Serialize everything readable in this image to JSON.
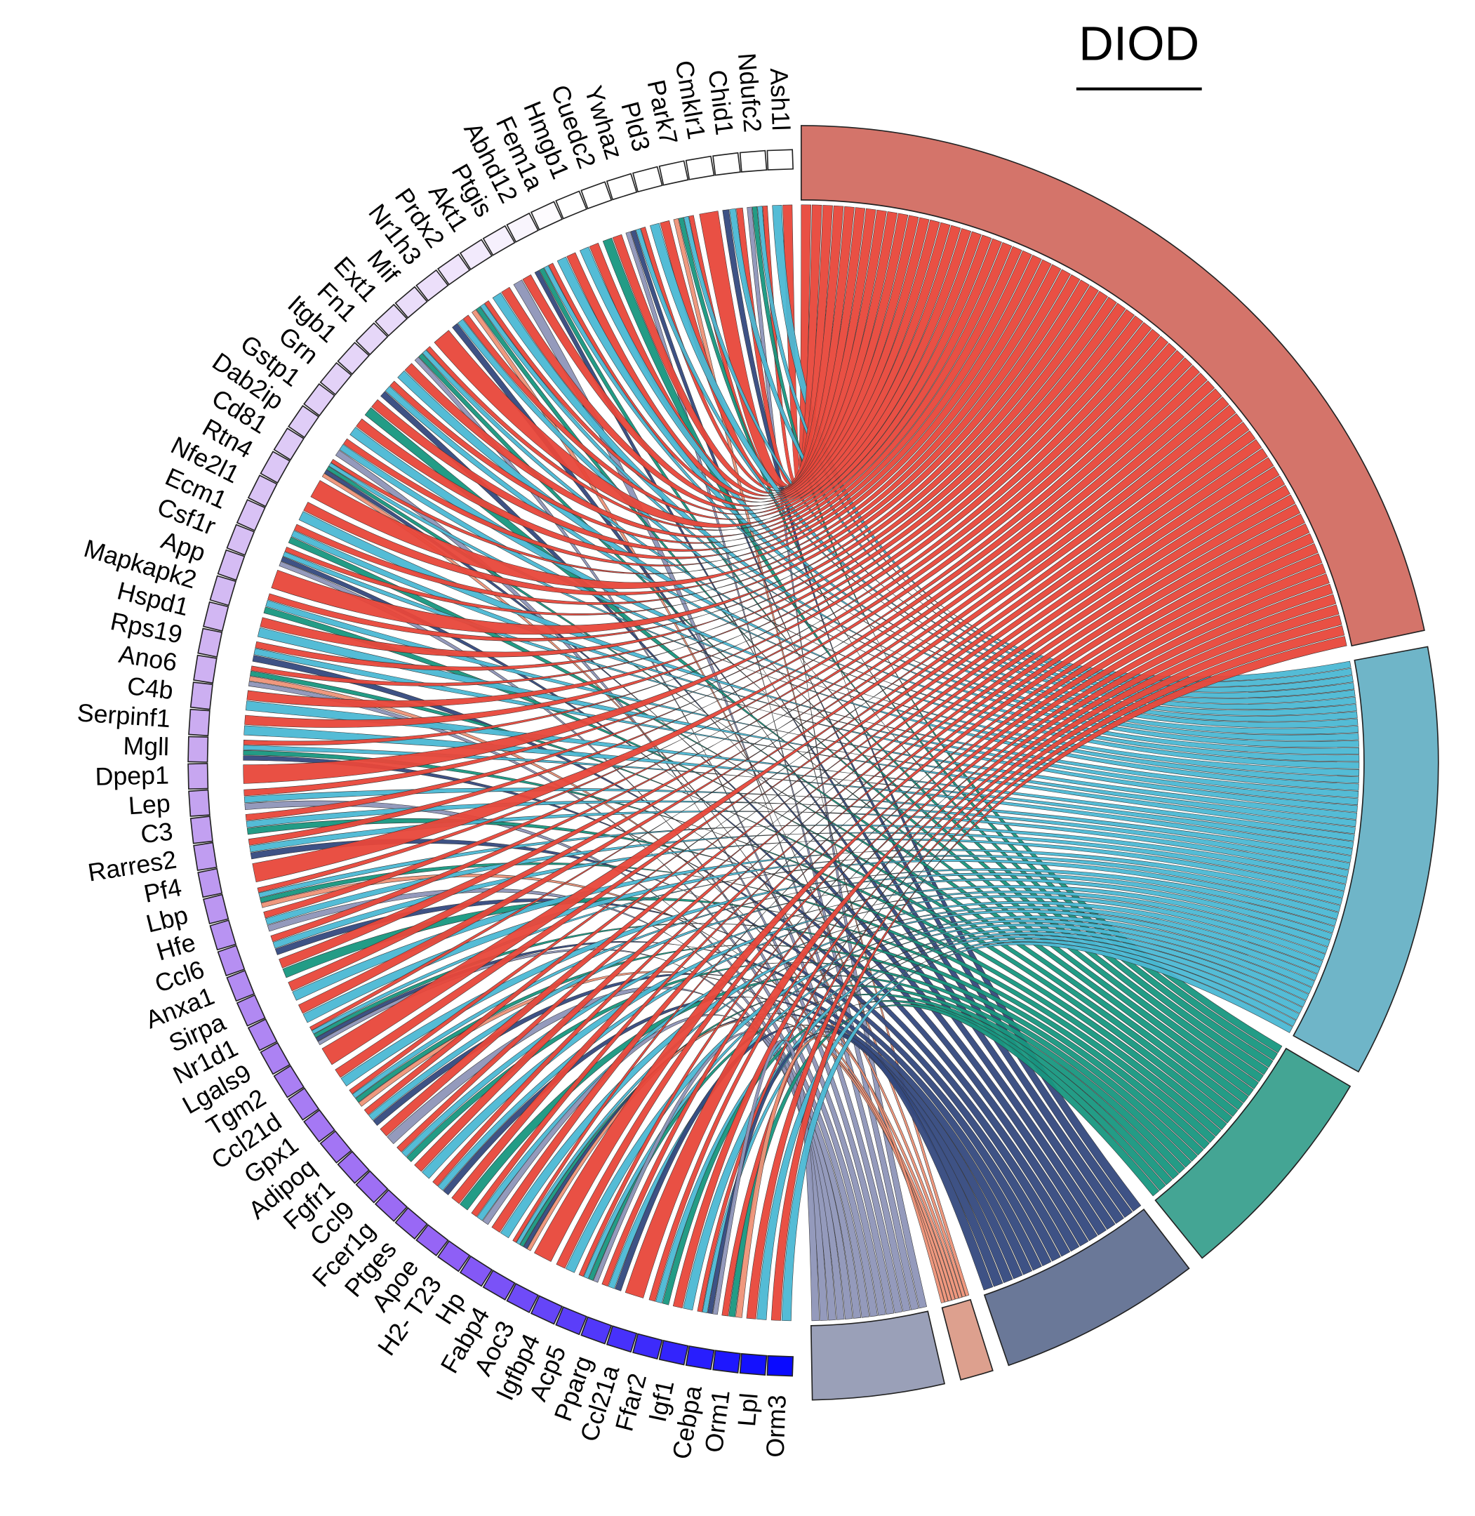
{
  "title": "DIOD",
  "genes": [
    "Ash1l",
    "Ndufc2",
    "Chid1",
    "Cmklr1",
    "Park7",
    "Pld3",
    "Ywhaz",
    "Cuedc2",
    "Hmgb1",
    "Fem1a",
    "Abhd12",
    "Ptgis",
    "Akt1",
    "Prdx2",
    "Nr1h3",
    "Mif",
    "Ext1",
    "Fn1",
    "Itgb1",
    "Grn",
    "Gstp1",
    "Dab2ip",
    "Cd81",
    "Rtn4",
    "Nfe2l1",
    "Ecm1",
    "Csf1r",
    "App",
    "Mapkapk2",
    "Hspd1",
    "Rps19",
    "Ano6",
    "C4b",
    "Serpinf1",
    "Mgll",
    "Dpep1",
    "Lep",
    "C3",
    "Rarres2",
    "Pf4",
    "Lbp",
    "Hfe",
    "Ccl6",
    "Anxa1",
    "Sirpa",
    "Nr1d1",
    "Lgals9",
    "Tgm2",
    "Ccl21d",
    "Gpx1",
    "Adipoq",
    "Fgfr1",
    "Ccl9",
    "Fcer1g",
    "Ptges",
    "Apoe",
    "H2- T23",
    "Hp",
    "Fabp4",
    "Aoc3",
    "Igfbp4",
    "Acp5",
    "Pparg",
    "Ccl21a",
    "Ffar2",
    "Igf1",
    "Cebpa",
    "Orm1",
    "Lpl",
    "Orm3"
  ]
}
